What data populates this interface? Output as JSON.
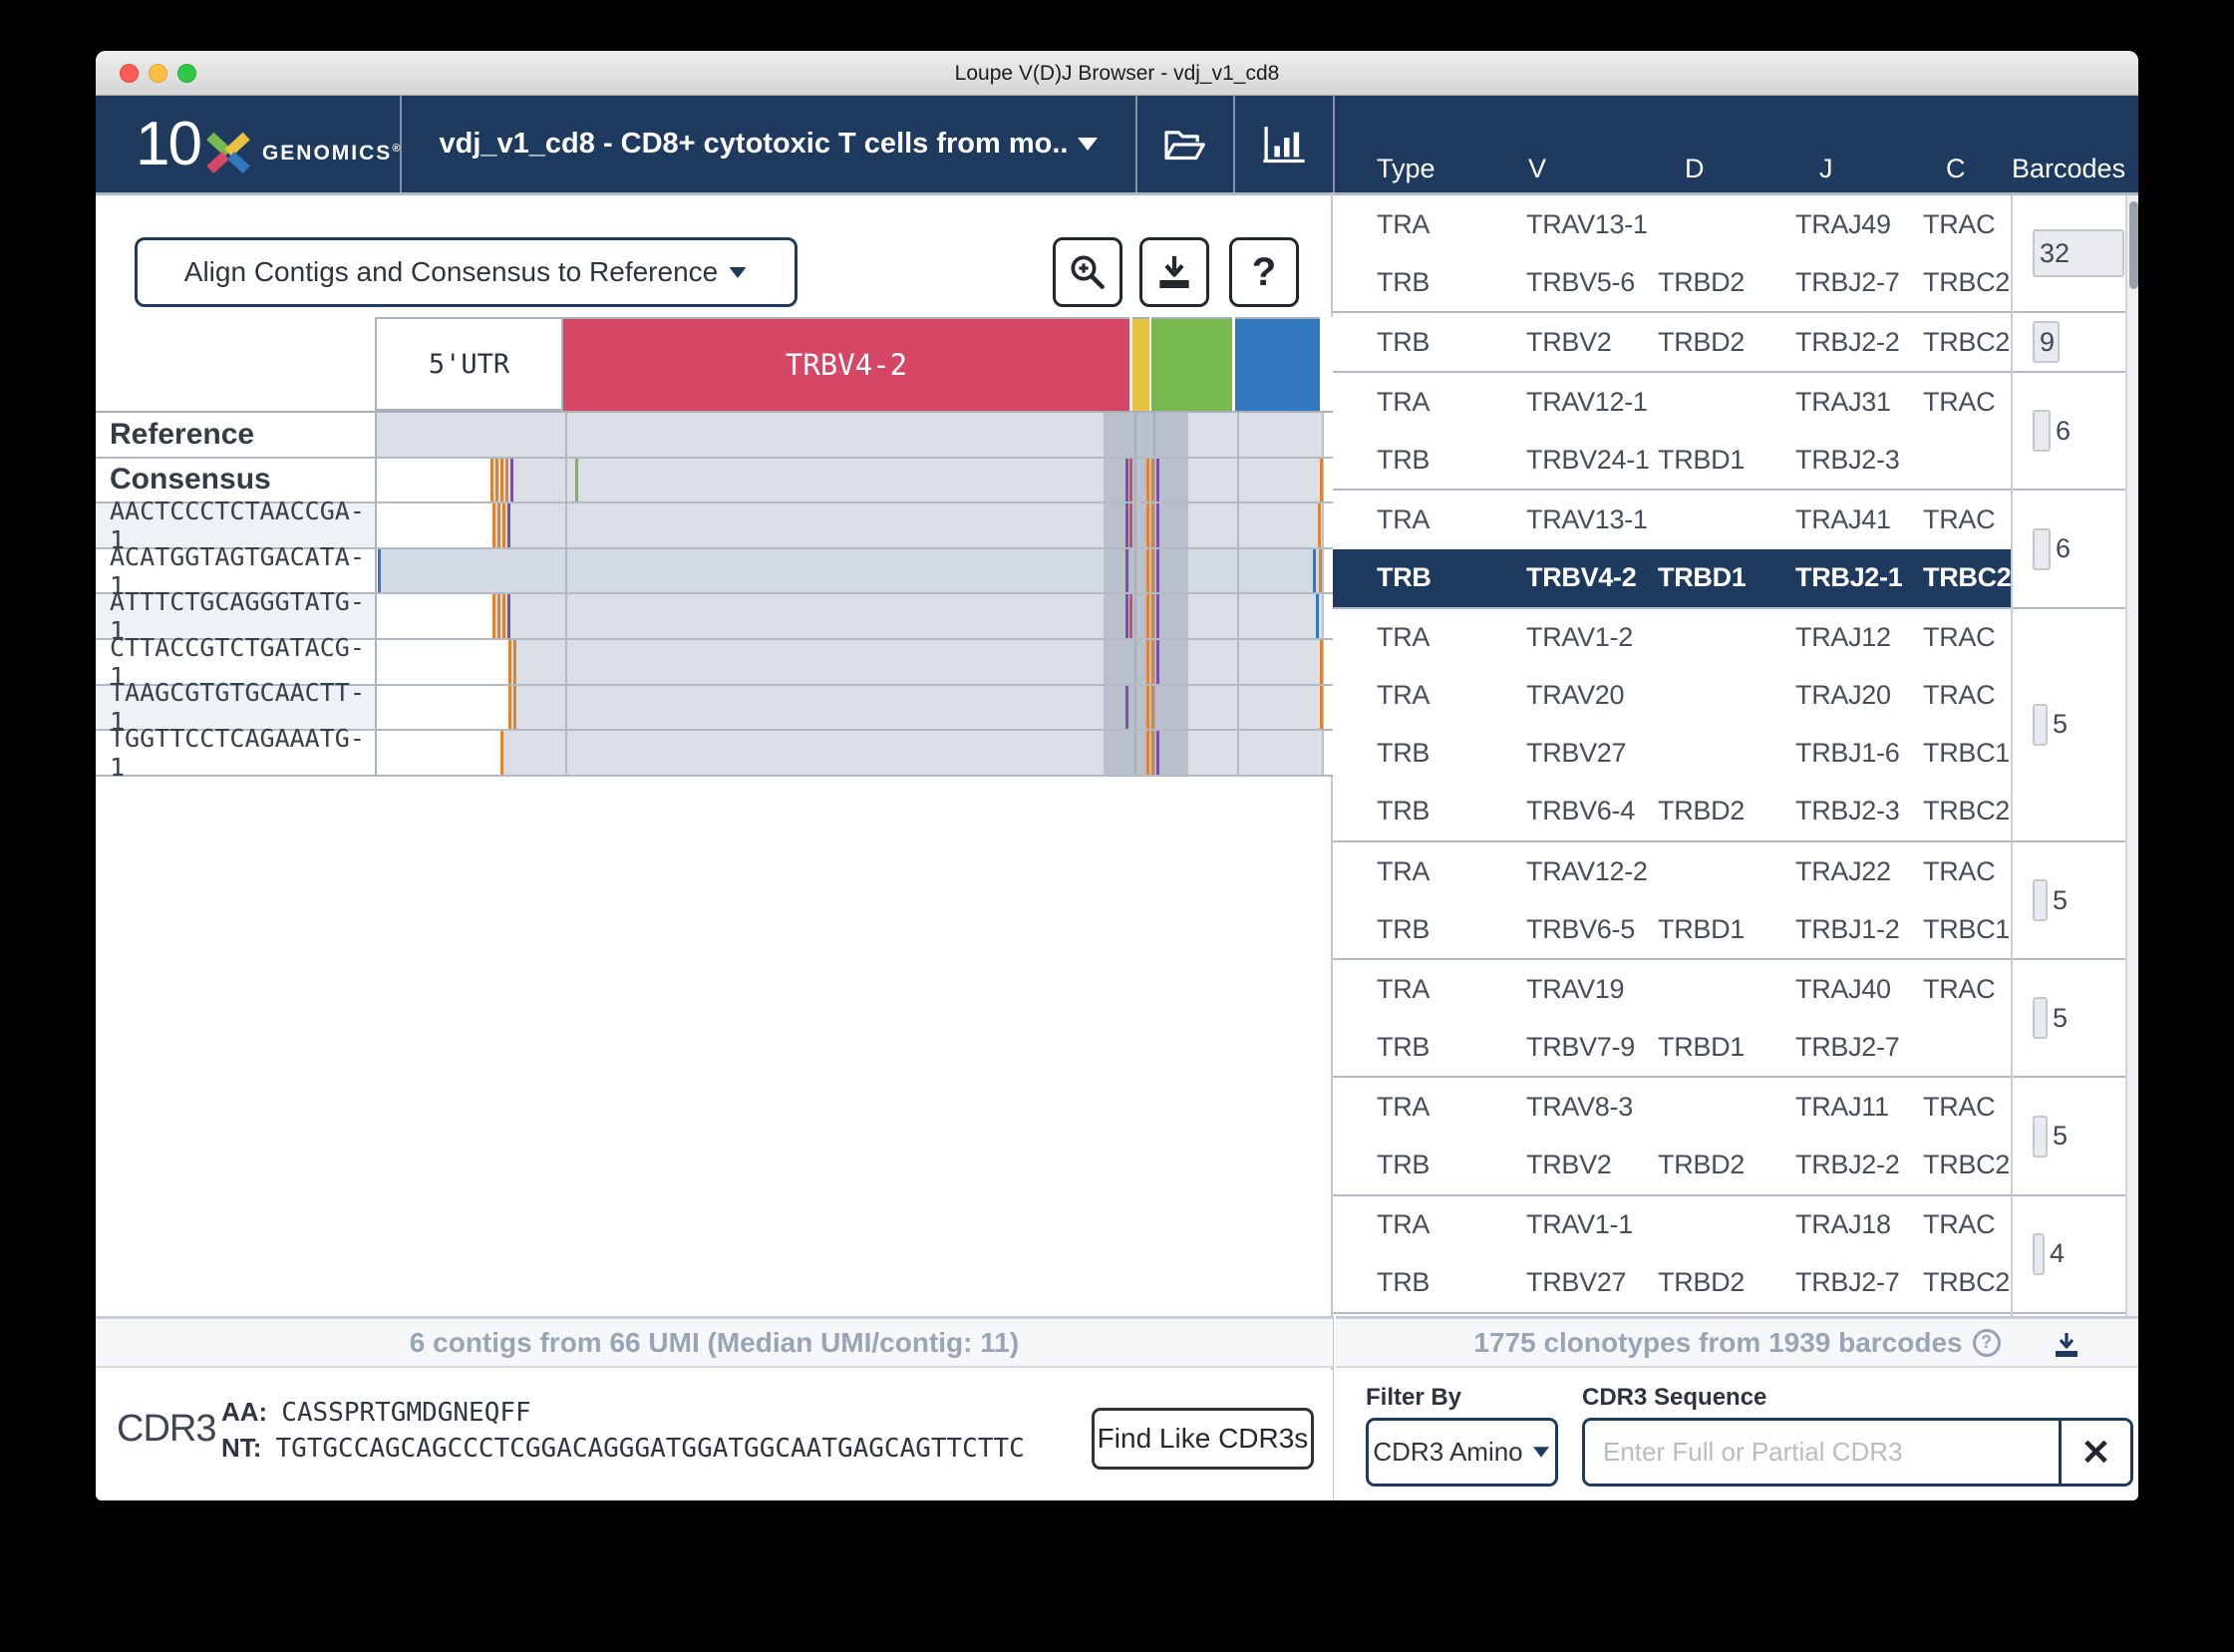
{
  "window_title": "Loupe V(D)J Browser - vdj_v1_cd8",
  "brand": {
    "number": "10",
    "name": "GENOMICS",
    "reg": "®"
  },
  "dataset": {
    "label": "vdj_v1_cd8 - CD8+ cytotoxic T cells from mo.."
  },
  "table_columns": [
    "Type",
    "V",
    "D",
    "J",
    "C",
    "Barcodes"
  ],
  "left_pane": {
    "align_selector": "Align Contigs and Consensus to Reference",
    "track_header": {
      "utr_label": "5'UTR",
      "v_label": "TRBV4-2"
    },
    "track_rows": [
      {
        "label": "Reference",
        "bold": true,
        "alt": false,
        "gray_start": 280,
        "ticks": []
      },
      {
        "label": "Consensus",
        "bold": true,
        "alt": false,
        "gray_start": 394,
        "ticks": [
          [
            394,
            "o"
          ],
          [
            399,
            "o"
          ],
          [
            404,
            "o"
          ],
          [
            409,
            "o"
          ],
          [
            414,
            "p"
          ],
          [
            479,
            "g"
          ],
          [
            1031,
            "p"
          ],
          [
            1035,
            "r"
          ],
          [
            1052,
            "o"
          ],
          [
            1057,
            "o"
          ],
          [
            1062,
            "p"
          ],
          [
            1226,
            "o"
          ]
        ]
      },
      {
        "label": "AACTCCCTCTAACCGA-1",
        "bold": false,
        "alt": true,
        "gray_start": 396,
        "ticks": [
          [
            396,
            "o"
          ],
          [
            401,
            "o"
          ],
          [
            406,
            "o"
          ],
          [
            411,
            "p"
          ],
          [
            1031,
            "p"
          ],
          [
            1035,
            "r"
          ],
          [
            1052,
            "o"
          ],
          [
            1057,
            "o"
          ],
          [
            1062,
            "p"
          ],
          [
            1224,
            "o"
          ]
        ]
      },
      {
        "label": "ACATGGTAGTGACATA-1",
        "bold": false,
        "alt": false,
        "gray_start": 283,
        "ticks": [
          [
            281,
            "b"
          ],
          [
            1031,
            "p"
          ],
          [
            1052,
            "o"
          ],
          [
            1057,
            "o"
          ],
          [
            1062,
            "p"
          ],
          [
            1219,
            "b"
          ],
          [
            1225,
            "o"
          ]
        ]
      },
      {
        "label": "ATTTCTGCAGGGTATG-1",
        "bold": false,
        "alt": true,
        "gray_start": 396,
        "ticks": [
          [
            396,
            "o"
          ],
          [
            401,
            "o"
          ],
          [
            406,
            "o"
          ],
          [
            411,
            "p"
          ],
          [
            1031,
            "p"
          ],
          [
            1035,
            "r"
          ],
          [
            1052,
            "o"
          ],
          [
            1057,
            "o"
          ],
          [
            1062,
            "p"
          ],
          [
            1222,
            "b"
          ]
        ]
      },
      {
        "label": "CTTACCGTCTGATACG-1",
        "bold": false,
        "alt": false,
        "gray_start": 412,
        "ticks": [
          [
            412,
            "o"
          ],
          [
            417,
            "o"
          ],
          [
            1052,
            "o"
          ],
          [
            1057,
            "o"
          ],
          [
            1062,
            "p"
          ],
          [
            1226,
            "o"
          ]
        ]
      },
      {
        "label": "TAAGCGTGTGCAACTT-1",
        "bold": false,
        "alt": true,
        "gray_start": 412,
        "ticks": [
          [
            412,
            "o"
          ],
          [
            417,
            "o"
          ],
          [
            1031,
            "p"
          ],
          [
            1052,
            "o"
          ],
          [
            1057,
            "o"
          ],
          [
            1226,
            "o"
          ]
        ]
      },
      {
        "label": "TGGTTCCTCAGAAATG-1",
        "bold": false,
        "alt": false,
        "gray_start": 404,
        "ticks": [
          [
            404,
            "o"
          ],
          [
            1052,
            "o"
          ],
          [
            1057,
            "o"
          ],
          [
            1062,
            "p"
          ]
        ]
      }
    ],
    "status": "6 contigs from 66 UMI (Median UMI/contig: 11)",
    "cdr3": {
      "title": "CDR3",
      "aa_label": "AA:",
      "aa_value": "CASSPRTGMDGNEQFF",
      "nt_label": "NT:",
      "nt_value": "TGTGCCAGCAGCCCTCGGACAGGGATGGATGGCAATGAGCAGTTCTTC",
      "find_button": "Find Like CDR3s"
    }
  },
  "right_pane": {
    "groups": [
      {
        "barcodes": 32,
        "chains": [
          {
            "type": "TRA",
            "v": "TRAV13-1",
            "d": "",
            "j": "TRAJ49",
            "c": "TRAC",
            "selected": false
          },
          {
            "type": "TRB",
            "v": "TRBV5-6",
            "d": "TRBD2",
            "j": "TRBJ2-7",
            "c": "TRBC2",
            "selected": false
          }
        ]
      },
      {
        "barcodes": 9,
        "chains": [
          {
            "type": "TRB",
            "v": "TRBV2",
            "d": "TRBD2",
            "j": "TRBJ2-2",
            "c": "TRBC2",
            "selected": false
          }
        ]
      },
      {
        "barcodes": 6,
        "chains": [
          {
            "type": "TRA",
            "v": "TRAV12-1",
            "d": "",
            "j": "TRAJ31",
            "c": "TRAC",
            "selected": false
          },
          {
            "type": "TRB",
            "v": "TRBV24-1",
            "d": "TRBD1",
            "j": "TRBJ2-3",
            "c": "",
            "selected": false
          }
        ]
      },
      {
        "barcodes": 6,
        "chains": [
          {
            "type": "TRA",
            "v": "TRAV13-1",
            "d": "",
            "j": "TRAJ41",
            "c": "TRAC",
            "selected": false
          },
          {
            "type": "TRB",
            "v": "TRBV4-2",
            "d": "TRBD1",
            "j": "TRBJ2-1",
            "c": "TRBC2",
            "selected": true
          }
        ]
      },
      {
        "barcodes": 5,
        "chains": [
          {
            "type": "TRA",
            "v": "TRAV1-2",
            "d": "",
            "j": "TRAJ12",
            "c": "TRAC",
            "selected": false
          },
          {
            "type": "TRA",
            "v": "TRAV20",
            "d": "",
            "j": "TRAJ20",
            "c": "TRAC",
            "selected": false
          },
          {
            "type": "TRB",
            "v": "TRBV27",
            "d": "",
            "j": "TRBJ1-6",
            "c": "TRBC1",
            "selected": false
          },
          {
            "type": "TRB",
            "v": "TRBV6-4",
            "d": "TRBD2",
            "j": "TRBJ2-3",
            "c": "TRBC2",
            "selected": false
          }
        ]
      },
      {
        "barcodes": 5,
        "chains": [
          {
            "type": "TRA",
            "v": "TRAV12-2",
            "d": "",
            "j": "TRAJ22",
            "c": "TRAC",
            "selected": false
          },
          {
            "type": "TRB",
            "v": "TRBV6-5",
            "d": "TRBD1",
            "j": "TRBJ1-2",
            "c": "TRBC1",
            "selected": false
          }
        ]
      },
      {
        "barcodes": 5,
        "chains": [
          {
            "type": "TRA",
            "v": "TRAV19",
            "d": "",
            "j": "TRAJ40",
            "c": "TRAC",
            "selected": false
          },
          {
            "type": "TRB",
            "v": "TRBV7-9",
            "d": "TRBD1",
            "j": "TRBJ2-7",
            "c": "",
            "selected": false
          }
        ]
      },
      {
        "barcodes": 5,
        "chains": [
          {
            "type": "TRA",
            "v": "TRAV8-3",
            "d": "",
            "j": "TRAJ11",
            "c": "TRAC",
            "selected": false
          },
          {
            "type": "TRB",
            "v": "TRBV2",
            "d": "TRBD2",
            "j": "TRBJ2-2",
            "c": "TRBC2",
            "selected": false
          }
        ]
      },
      {
        "barcodes": 4,
        "chains": [
          {
            "type": "TRA",
            "v": "TRAV1-1",
            "d": "",
            "j": "TRAJ18",
            "c": "TRAC",
            "selected": false
          },
          {
            "type": "TRB",
            "v": "TRBV27",
            "d": "TRBD2",
            "j": "TRBJ2-7",
            "c": "TRBC2",
            "selected": false
          }
        ]
      }
    ],
    "summary": "1775 clonotypes from 1939 barcodes",
    "filter_by_label": "Filter By",
    "filter_by_value": "CDR3 Amino",
    "cdr3_seq_label": "CDR3 Sequence",
    "cdr3_placeholder": "Enter Full or Partial CDR3"
  },
  "colors": {
    "navy": "#1e3a5f",
    "red_band": "#d64765",
    "yellow_band": "#e7c23f",
    "green_band": "#77b94e",
    "blue_band": "#3278be",
    "gray_band": "#dadfe6",
    "gray_band_selected": "#d4dae4",
    "dark_col": "#b9c0cc",
    "tick_o": "#e0832f",
    "tick_p": "#7c4ea3",
    "tick_r": "#d64765",
    "tick_b": "#3278be",
    "tick_g": "#77b94e"
  }
}
